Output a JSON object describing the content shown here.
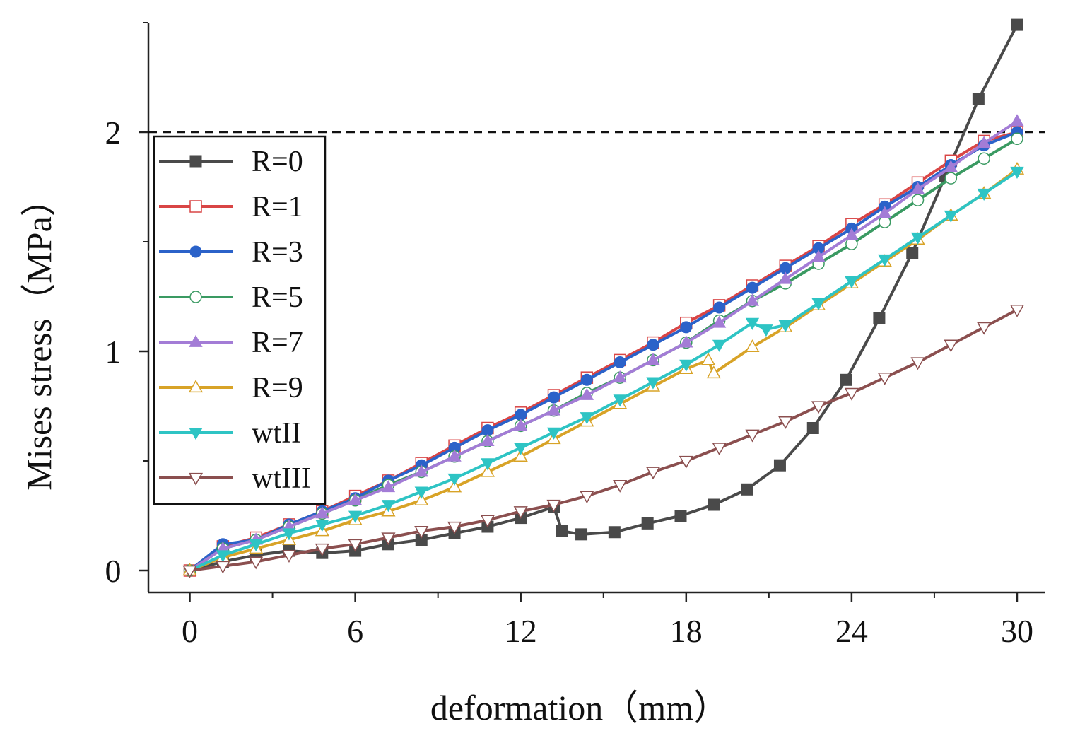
{
  "chart_data": {
    "type": "line",
    "title": "",
    "xlabel": "deformation（mm）",
    "ylabel": "Mises stress（MPa）",
    "xlim": [
      -1.5,
      31
    ],
    "ylim": [
      -0.1,
      2.5
    ],
    "xticks": [
      0,
      6,
      12,
      18,
      24,
      30
    ],
    "xticks_minor": [
      3,
      9,
      15,
      21,
      27
    ],
    "yticks": [
      0,
      1,
      2
    ],
    "yticks_minor": [
      0.5,
      1.5,
      2.5
    ],
    "reference_line": {
      "y": 2,
      "style": "dashed"
    },
    "grid": false,
    "legend_position": "left",
    "series": [
      {
        "name": "R=0",
        "color": "#4a4a4a",
        "marker": "square-filled",
        "points": [
          [
            0,
            0
          ],
          [
            1.2,
            0.04
          ],
          [
            2.4,
            0.07
          ],
          [
            3.6,
            0.09
          ],
          [
            4.8,
            0.08
          ],
          [
            6,
            0.09
          ],
          [
            7.2,
            0.12
          ],
          [
            8.4,
            0.14
          ],
          [
            9.6,
            0.17
          ],
          [
            10.8,
            0.2
          ],
          [
            12,
            0.24
          ],
          [
            13.2,
            0.29
          ],
          [
            13.5,
            0.18
          ],
          [
            14.2,
            0.165
          ],
          [
            15.4,
            0.175
          ],
          [
            16.6,
            0.215
          ],
          [
            17.8,
            0.25
          ],
          [
            19,
            0.3
          ],
          [
            20.2,
            0.37
          ],
          [
            21.4,
            0.48
          ],
          [
            22.6,
            0.65
          ],
          [
            23.8,
            0.87
          ],
          [
            25,
            1.15
          ],
          [
            26.2,
            1.45
          ],
          [
            27.4,
            1.8
          ],
          [
            28.6,
            2.15
          ],
          [
            30,
            2.49
          ]
        ]
      },
      {
        "name": "R=1",
        "color": "#d94545",
        "marker": "square-open",
        "points": [
          [
            0,
            0
          ],
          [
            1.2,
            0.11
          ],
          [
            2.4,
            0.15
          ],
          [
            3.6,
            0.21
          ],
          [
            4.8,
            0.27
          ],
          [
            6,
            0.34
          ],
          [
            7.2,
            0.41
          ],
          [
            8.4,
            0.49
          ],
          [
            9.6,
            0.57
          ],
          [
            10.8,
            0.65
          ],
          [
            12,
            0.72
          ],
          [
            13.2,
            0.8
          ],
          [
            14.4,
            0.88
          ],
          [
            15.6,
            0.96
          ],
          [
            16.8,
            1.04
          ],
          [
            18,
            1.13
          ],
          [
            19.2,
            1.21
          ],
          [
            20.4,
            1.3
          ],
          [
            21.6,
            1.39
          ],
          [
            22.8,
            1.48
          ],
          [
            24,
            1.58
          ],
          [
            25.2,
            1.67
          ],
          [
            26.4,
            1.77
          ],
          [
            27.6,
            1.87
          ],
          [
            28.8,
            1.96
          ],
          [
            30,
            2.0
          ]
        ]
      },
      {
        "name": "R=3",
        "color": "#2b62c9",
        "marker": "circle-filled",
        "points": [
          [
            0,
            0
          ],
          [
            1.2,
            0.12
          ],
          [
            2.4,
            0.14
          ],
          [
            3.6,
            0.21
          ],
          [
            4.8,
            0.27
          ],
          [
            6,
            0.33
          ],
          [
            7.2,
            0.41
          ],
          [
            8.4,
            0.48
          ],
          [
            9.6,
            0.56
          ],
          [
            10.8,
            0.64
          ],
          [
            12,
            0.71
          ],
          [
            13.2,
            0.79
          ],
          [
            14.4,
            0.87
          ],
          [
            15.6,
            0.95
          ],
          [
            16.8,
            1.03
          ],
          [
            18,
            1.11
          ],
          [
            19.2,
            1.2
          ],
          [
            20.4,
            1.29
          ],
          [
            21.6,
            1.38
          ],
          [
            22.8,
            1.47
          ],
          [
            24,
            1.56
          ],
          [
            25.2,
            1.66
          ],
          [
            26.4,
            1.75
          ],
          [
            27.6,
            1.85
          ],
          [
            28.8,
            1.94
          ],
          [
            30,
            2.0
          ]
        ]
      },
      {
        "name": "R=5",
        "color": "#3a9a62",
        "marker": "circle-open",
        "points": [
          [
            0,
            0
          ],
          [
            1.2,
            0.1
          ],
          [
            2.4,
            0.14
          ],
          [
            3.6,
            0.2
          ],
          [
            4.8,
            0.26
          ],
          [
            6,
            0.32
          ],
          [
            7.2,
            0.39
          ],
          [
            8.4,
            0.45
          ],
          [
            9.6,
            0.52
          ],
          [
            10.8,
            0.59
          ],
          [
            12,
            0.66
          ],
          [
            13.2,
            0.73
          ],
          [
            14.4,
            0.81
          ],
          [
            15.6,
            0.88
          ],
          [
            16.8,
            0.96
          ],
          [
            18,
            1.04
          ],
          [
            19.2,
            1.14
          ],
          [
            20.4,
            1.23
          ],
          [
            21.6,
            1.31
          ],
          [
            22.8,
            1.4
          ],
          [
            24,
            1.49
          ],
          [
            25.2,
            1.59
          ],
          [
            26.4,
            1.69
          ],
          [
            27.6,
            1.79
          ],
          [
            28.8,
            1.88
          ],
          [
            30,
            1.97
          ]
        ]
      },
      {
        "name": "R=7",
        "color": "#a37cd6",
        "marker": "triangle-up-filled",
        "points": [
          [
            0,
            0
          ],
          [
            1.2,
            0.1
          ],
          [
            2.4,
            0.14
          ],
          [
            3.6,
            0.2
          ],
          [
            4.8,
            0.26
          ],
          [
            6,
            0.32
          ],
          [
            7.2,
            0.38
          ],
          [
            8.4,
            0.45
          ],
          [
            9.6,
            0.52
          ],
          [
            10.8,
            0.59
          ],
          [
            12,
            0.66
          ],
          [
            13.2,
            0.73
          ],
          [
            14.4,
            0.8
          ],
          [
            15.6,
            0.88
          ],
          [
            16.8,
            0.96
          ],
          [
            18,
            1.04
          ],
          [
            19.2,
            1.13
          ],
          [
            20.4,
            1.23
          ],
          [
            21.6,
            1.33
          ],
          [
            22.8,
            1.43
          ],
          [
            24,
            1.53
          ],
          [
            25.2,
            1.63
          ],
          [
            26.4,
            1.74
          ],
          [
            27.6,
            1.84
          ],
          [
            28.8,
            1.95
          ],
          [
            30,
            2.05
          ]
        ]
      },
      {
        "name": "R=9",
        "color": "#d8a327",
        "marker": "triangle-up-open",
        "points": [
          [
            0,
            0
          ],
          [
            1.2,
            0.06
          ],
          [
            2.4,
            0.1
          ],
          [
            3.6,
            0.14
          ],
          [
            4.8,
            0.18
          ],
          [
            6,
            0.23
          ],
          [
            7.2,
            0.27
          ],
          [
            8.4,
            0.32
          ],
          [
            9.6,
            0.38
          ],
          [
            10.8,
            0.45
          ],
          [
            12,
            0.52
          ],
          [
            13.2,
            0.6
          ],
          [
            14.4,
            0.68
          ],
          [
            15.6,
            0.76
          ],
          [
            16.8,
            0.84
          ],
          [
            18,
            0.92
          ],
          [
            18.8,
            0.96
          ],
          [
            19,
            0.9
          ],
          [
            20.4,
            1.02
          ],
          [
            21.6,
            1.11
          ],
          [
            22.8,
            1.21
          ],
          [
            24,
            1.31
          ],
          [
            25.2,
            1.41
          ],
          [
            26.4,
            1.51
          ],
          [
            27.6,
            1.62
          ],
          [
            28.8,
            1.72
          ],
          [
            30,
            1.83
          ]
        ]
      },
      {
        "name": "wtII",
        "color": "#2ec4c4",
        "marker": "triangle-down-filled",
        "points": [
          [
            0,
            0
          ],
          [
            1.2,
            0.07
          ],
          [
            2.4,
            0.12
          ],
          [
            3.6,
            0.17
          ],
          [
            4.8,
            0.21
          ],
          [
            6,
            0.25
          ],
          [
            7.2,
            0.3
          ],
          [
            8.4,
            0.36
          ],
          [
            9.6,
            0.42
          ],
          [
            10.8,
            0.49
          ],
          [
            12,
            0.56
          ],
          [
            13.2,
            0.63
          ],
          [
            14.4,
            0.7
          ],
          [
            15.6,
            0.78
          ],
          [
            16.8,
            0.86
          ],
          [
            18,
            0.94
          ],
          [
            19.2,
            1.03
          ],
          [
            20.4,
            1.13
          ],
          [
            20.9,
            1.1
          ],
          [
            21.6,
            1.12
          ],
          [
            22.8,
            1.22
          ],
          [
            24,
            1.32
          ],
          [
            25.2,
            1.42
          ],
          [
            26.4,
            1.52
          ],
          [
            27.6,
            1.62
          ],
          [
            28.8,
            1.72
          ],
          [
            30,
            1.82
          ]
        ]
      },
      {
        "name": "wtIII",
        "color": "#8b4f4f",
        "marker": "triangle-down-open",
        "points": [
          [
            0,
            0
          ],
          [
            1.2,
            0.02
          ],
          [
            2.4,
            0.04
          ],
          [
            3.6,
            0.07
          ],
          [
            4.8,
            0.1
          ],
          [
            6,
            0.12
          ],
          [
            7.2,
            0.15
          ],
          [
            8.4,
            0.18
          ],
          [
            9.6,
            0.2
          ],
          [
            10.8,
            0.23
          ],
          [
            12,
            0.27
          ],
          [
            13.2,
            0.3
          ],
          [
            14.4,
            0.34
          ],
          [
            15.6,
            0.39
          ],
          [
            16.8,
            0.45
          ],
          [
            18,
            0.5
          ],
          [
            19.2,
            0.56
          ],
          [
            20.4,
            0.62
          ],
          [
            21.6,
            0.68
          ],
          [
            22.8,
            0.75
          ],
          [
            24,
            0.81
          ],
          [
            25.2,
            0.88
          ],
          [
            26.4,
            0.95
          ],
          [
            27.6,
            1.03
          ],
          [
            28.8,
            1.11
          ],
          [
            30,
            1.19
          ]
        ]
      }
    ]
  }
}
